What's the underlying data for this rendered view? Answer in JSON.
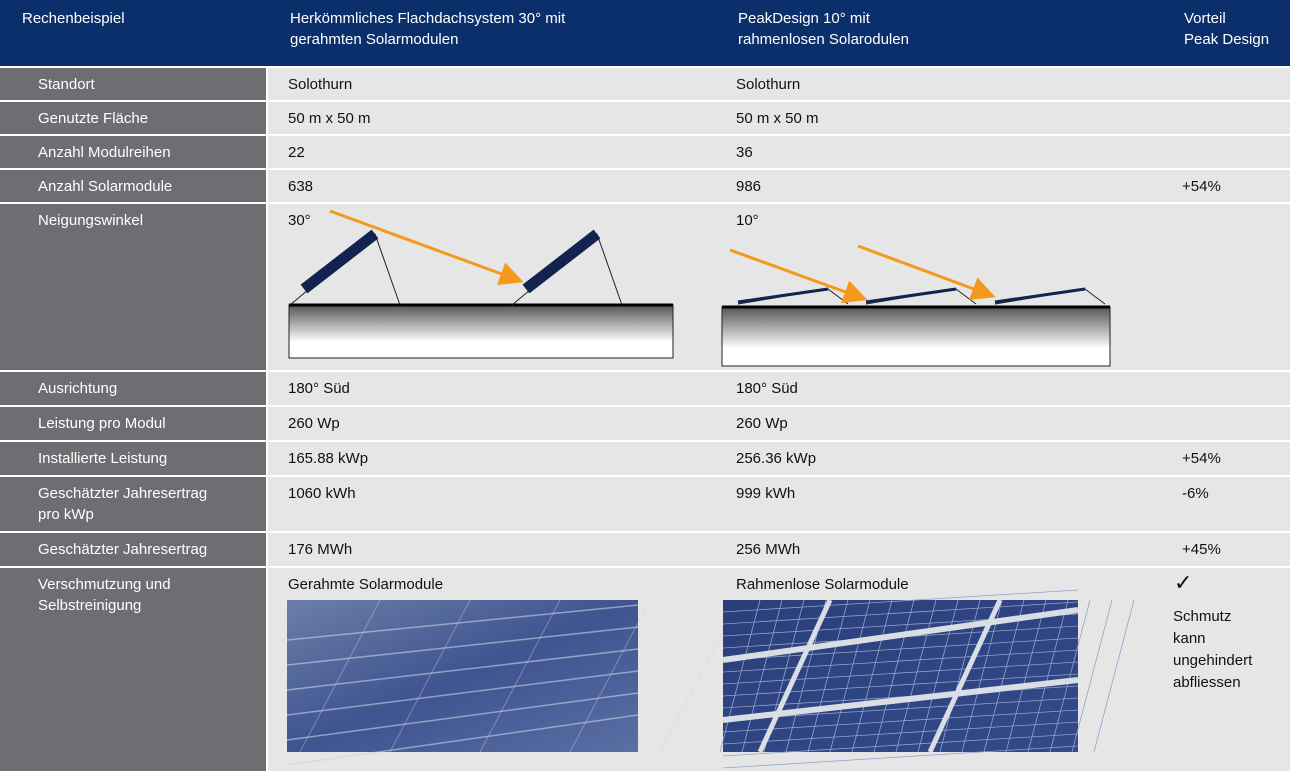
{
  "header": [
    "Rechenbeispiel",
    "Herkömmliches Flachdachsystem 30° mit\ngerahmten Solarmodulen",
    "PeakDesign 10° mit\nrahmenlosen Solarodulen",
    "Vorteil\nPeak Design"
  ],
  "rows": [
    {
      "label": "Standort",
      "conventional": "Solothurn",
      "peak": "Solothurn"
    },
    {
      "label": "Genutzte Fläche",
      "conventional": "50 m x 50 m",
      "peak": "50 m x 50 m"
    },
    {
      "label": "Anzahl Modulreihen",
      "conventional": "22",
      "peak": "36"
    },
    {
      "label": "Anzahl Solarmodule",
      "conventional": "638",
      "peak": "986",
      "advantage": "+54%"
    },
    {
      "label": "Neigungswinkel",
      "conventional": "30°",
      "peak": "10°"
    },
    {
      "label": "Ausrichtung",
      "conventional": "180° Süd",
      "peak": "180° Süd"
    },
    {
      "label": "Leistung pro Modul",
      "conventional": "260 Wp",
      "peak": "260 Wp"
    },
    {
      "label": "Installierte Leistung",
      "conventional": "165.88 kWp",
      "peak": "256.36 kWp",
      "advantage": "+54%"
    },
    {
      "label": "Geschätzter Jahresertrag\npro kWp",
      "conventional": "1060 kWh",
      "peak": "999 kWh",
      "advantage": "-6%"
    },
    {
      "label": "Geschätzter Jahresertrag",
      "conventional": "176 MWh",
      "peak": "256 MWh",
      "advantage": "+45%"
    },
    {
      "label": "Verschmutzung und\nSelbstreinigung",
      "conventional": "Gerahmte Solarmodule",
      "peak": "Rahmenlose Solarmodule",
      "advantage_mark": "✓",
      "advantage": "Schmutz\nkann\nungehindert\nabfliessen"
    }
  ]
}
